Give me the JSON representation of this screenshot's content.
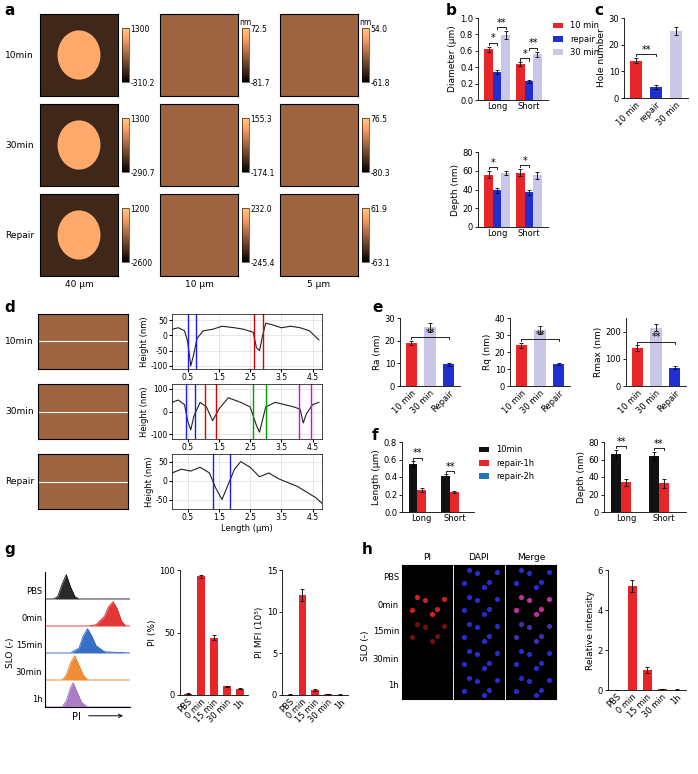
{
  "chart_data": [
    {
      "panel": "a",
      "type": "image_grid",
      "rows": [
        "10min",
        "30min",
        "Repair"
      ],
      "scales": [
        "40 µm",
        "10 µm",
        "5 µm"
      ],
      "colorbars": [
        [
          {
            "range": [
              -310.2,
              1300
            ],
            "ticks": [
              -310.2,
              1300
            ]
          },
          {
            "range": [
              -81.7,
              72.5
            ],
            "ticks": [
              -81.7,
              72.5
            ],
            "label": "nm"
          },
          {
            "range": [
              -61.8,
              54.0
            ],
            "ticks": [
              -61.8,
              54.0
            ],
            "label": "nm"
          }
        ],
        [
          {
            "range": [
              -290.7,
              1300
            ],
            "ticks": [
              -290.7,
              1300
            ]
          },
          {
            "range": [
              -174.1,
              155.3
            ],
            "ticks": [
              -174.1,
              155.3
            ]
          },
          {
            "range": [
              -80.3,
              76.5
            ],
            "ticks": [
              -80.3,
              76.5
            ]
          }
        ],
        [
          {
            "range": [
              -2600,
              1200
            ],
            "ticks": [
              -2600,
              1200
            ]
          },
          {
            "range": [
              -245.4,
              232.0
            ],
            "ticks": [
              -245.4,
              232.0
            ]
          },
          {
            "range": [
              -63.1,
              61.9
            ],
            "ticks": [
              -63.1,
              61.9
            ]
          }
        ]
      ]
    },
    {
      "panel": "b",
      "type": "bar",
      "ylabel": "Diameter (µm)",
      "categories": [
        "Long",
        "Short"
      ],
      "series": [
        {
          "name": "10 min",
          "color": "#e8262a",
          "values": [
            0.62,
            0.44
          ],
          "errors": [
            0.03,
            0.02
          ]
        },
        {
          "name": "repair",
          "color": "#1f2fd0",
          "values": [
            0.34,
            0.23
          ],
          "errors": [
            0.02,
            0.02
          ]
        },
        {
          "name": "30 min",
          "color": "#c8c8e6",
          "values": [
            0.79,
            0.56
          ],
          "errors": [
            0.05,
            0.03
          ]
        }
      ],
      "ylim": [
        0,
        1.0
      ],
      "yticks": [
        {
          "value": 0.0,
          "label": "0.0"
        },
        {
          "value": 0.2,
          "label": "0.2"
        },
        {
          "value": 0.4,
          "label": "0.4"
        },
        {
          "value": 0.6,
          "label": "0.6"
        },
        {
          "value": 0.8,
          "label": "0.8"
        },
        {
          "value": 1.0,
          "label": "1.0"
        }
      ],
      "legend": "right",
      "significance": [
        {
          "group": 0,
          "from": 0,
          "to": 1,
          "label": "*"
        },
        {
          "group": 0,
          "from": 1,
          "to": 2,
          "label": "**"
        },
        {
          "group": 1,
          "from": 0,
          "to": 1,
          "label": "*"
        },
        {
          "group": 1,
          "from": 1,
          "to": 2,
          "label": "**"
        }
      ]
    },
    {
      "panel": "c",
      "type": "bar",
      "ylabel": "Hole number",
      "categories": [
        "10 min",
        "repair",
        "30 min"
      ],
      "values": [
        14,
        4,
        25
      ],
      "errors": [
        1,
        0.8,
        1.5
      ],
      "colors": [
        "#e8262a",
        "#1f2fd0",
        "#c8c8e6"
      ],
      "ylim": [
        0,
        30
      ],
      "yticks": [
        0,
        10,
        20,
        30
      ],
      "significance": [
        {
          "from": 0,
          "to": 1,
          "label": "**"
        }
      ]
    },
    {
      "type": "bar",
      "ylabel": "Depth (nm)",
      "categories": [
        "Long",
        "Short"
      ],
      "series": [
        {
          "name": "10 min",
          "color": "#e8262a",
          "values": [
            56,
            58
          ],
          "errors": [
            4,
            4
          ]
        },
        {
          "name": "repair",
          "color": "#1f2fd0",
          "values": [
            39,
            37
          ],
          "errors": [
            3,
            3
          ]
        },
        {
          "name": "30 min",
          "color": "#c8c8e6",
          "values": [
            58,
            55
          ],
          "errors": [
            2,
            4
          ]
        }
      ],
      "ylim": [
        0,
        80
      ],
      "yticks": [
        0,
        20,
        40,
        60,
        80
      ],
      "significance": [
        {
          "group": 0,
          "from": 0,
          "to": 1,
          "label": "*"
        },
        {
          "group": 1,
          "from": 0,
          "to": 1,
          "label": "*"
        }
      ]
    },
    {
      "panel": "d",
      "type": "profile",
      "xlabel": "Length (µm)",
      "ylabel": "Height (nm)",
      "grid": true,
      "xlim": [
        0,
        4.8
      ],
      "xticks": [
        0.5,
        1.5,
        2.5,
        3.5,
        4.5
      ],
      "rows": [
        {
          "label": "10min",
          "ylim": [
            -110,
            70
          ],
          "yticks": [
            -100,
            -50,
            0,
            50
          ],
          "x": [
            0,
            0.2,
            0.4,
            0.5,
            0.6,
            0.7,
            0.8,
            1.0,
            1.3,
            1.6,
            2.0,
            2.3,
            2.6,
            2.7,
            2.8,
            2.9,
            3.0,
            3.2,
            3.5,
            3.8,
            4.1,
            4.4,
            4.7
          ],
          "y": [
            20,
            25,
            15,
            -20,
            -100,
            -60,
            -10,
            15,
            20,
            30,
            25,
            20,
            10,
            -40,
            -50,
            0,
            40,
            35,
            25,
            30,
            25,
            15,
            -15
          ],
          "markers": [
            {
              "x": 0.5,
              "color": "#1a1aff"
            },
            {
              "x": 0.78,
              "color": "#1a1aff"
            },
            {
              "x": 2.62,
              "color": "#e00000"
            },
            {
              "x": 2.92,
              "color": "#e00000"
            }
          ]
        },
        {
          "label": "30min",
          "ylim": [
            -120,
            120
          ],
          "yticks": [
            -100,
            0,
            100
          ],
          "x": [
            0,
            0.2,
            0.4,
            0.5,
            0.6,
            0.7,
            0.9,
            1.1,
            1.3,
            1.5,
            1.8,
            2.2,
            2.5,
            2.7,
            2.8,
            3.0,
            3.3,
            3.6,
            3.9,
            4.1,
            4.2,
            4.3,
            4.5,
            4.7
          ],
          "y": [
            40,
            50,
            30,
            -40,
            -80,
            -20,
            40,
            20,
            -40,
            10,
            60,
            40,
            20,
            -60,
            -90,
            20,
            40,
            30,
            20,
            10,
            -50,
            -10,
            30,
            40
          ],
          "markers": [
            {
              "x": 0.45,
              "color": "#1a1aff"
            },
            {
              "x": 0.72,
              "color": "#1a1aff"
            },
            {
              "x": 1.05,
              "color": "#e00000"
            },
            {
              "x": 1.4,
              "color": "#e00000"
            },
            {
              "x": 2.6,
              "color": "#00a000"
            },
            {
              "x": 3.0,
              "color": "#00a000"
            },
            {
              "x": 4.05,
              "color": "#e000e0"
            },
            {
              "x": 4.45,
              "color": "#e000e0"
            }
          ]
        },
        {
          "label": "Repair",
          "ylim": [
            -75,
            70
          ],
          "yticks": [
            -50,
            0,
            50
          ],
          "x": [
            0,
            0.3,
            0.6,
            0.9,
            1.2,
            1.4,
            1.6,
            1.8,
            2.0,
            2.2,
            2.5,
            2.8,
            3.1,
            3.4,
            3.7,
            4.0,
            4.3,
            4.6,
            4.8
          ],
          "y": [
            20,
            30,
            25,
            35,
            20,
            -20,
            -50,
            -10,
            30,
            50,
            35,
            10,
            20,
            5,
            -5,
            -15,
            -30,
            -45,
            -60
          ],
          "markers": [
            {
              "x": 1.3,
              "color": "#1a1aff"
            },
            {
              "x": 1.85,
              "color": "#1a1aff"
            }
          ]
        }
      ]
    },
    {
      "panel": "e",
      "type": "bar",
      "ylabel": "Ra (nm)",
      "categories": [
        "10 min",
        "30 min",
        "Repair"
      ],
      "values": [
        19,
        26,
        9.5
      ],
      "errors": [
        1,
        2,
        0.5
      ],
      "colors": [
        "#e8262a",
        "#c8c8e6",
        "#1f2fd0"
      ],
      "ylim": [
        0,
        30
      ],
      "yticks": [
        0,
        10,
        20,
        30
      ],
      "significance": [
        {
          "from": 0,
          "to": 2,
          "label": "**"
        }
      ]
    },
    {
      "type": "bar",
      "ylabel": "Rq (nm)",
      "categories": [
        "10 min",
        "30 min",
        "Repair"
      ],
      "values": [
        24,
        33,
        13
      ],
      "errors": [
        1.5,
        2.5,
        0.5
      ],
      "colors": [
        "#e8262a",
        "#c8c8e6",
        "#1f2fd0"
      ],
      "ylim": [
        0,
        40
      ],
      "yticks": [
        0,
        10,
        20,
        30,
        40
      ],
      "significance": [
        {
          "from": 0,
          "to": 2,
          "label": "**"
        }
      ]
    },
    {
      "type": "bar",
      "ylabel": "Rmax (nm)",
      "categories": [
        "10 min",
        "30 min",
        "Repair"
      ],
      "values": [
        140,
        215,
        68
      ],
      "errors": [
        10,
        12,
        5
      ],
      "colors": [
        "#e8262a",
        "#c8c8e6",
        "#1f2fd0"
      ],
      "ylim": [
        0,
        250
      ],
      "yticks": [
        0,
        100,
        200
      ],
      "significance": [
        {
          "from": 0,
          "to": 2,
          "label": "**"
        }
      ]
    },
    {
      "panel": "f",
      "type": "bar",
      "ylabel": "Length (µm)",
      "categories": [
        "Long",
        "Short"
      ],
      "series": [
        {
          "name": "10min",
          "color": "#111111",
          "values": [
            0.55,
            0.41
          ],
          "errors": [
            0.03,
            0.02
          ]
        },
        {
          "name": "repair-1h",
          "color": "#e8262a",
          "values": [
            0.25,
            0.23
          ],
          "errors": [
            0.02,
            0.01
          ]
        },
        {
          "name": "repair-2h",
          "color": "#1f2fd0",
          "values": [
            null,
            null
          ]
        }
      ],
      "ylim": [
        0,
        0.8
      ],
      "yticks": [
        {
          "value": 0.0,
          "label": "0.0"
        },
        {
          "value": 0.2,
          "label": "0.2"
        },
        {
          "value": 0.4,
          "label": "0.4"
        },
        {
          "value": 0.6,
          "label": "0.6"
        },
        {
          "value": 0.8,
          "label": "0.8"
        }
      ],
      "legend": "right",
      "significance": [
        {
          "group": 0,
          "from": 0,
          "to": 1,
          "label": "**"
        },
        {
          "group": 1,
          "from": 0,
          "to": 1,
          "label": "**"
        }
      ]
    },
    {
      "type": "bar",
      "ylabel": "Depth (nm)",
      "categories": [
        "Long",
        "Short"
      ],
      "series": [
        {
          "name": "10min",
          "color": "#111111",
          "values": [
            66,
            64
          ],
          "errors": [
            5,
            5
          ]
        },
        {
          "name": "repair-1h",
          "color": "#e8262a",
          "values": [
            34,
            33
          ],
          "errors": [
            4,
            5
          ]
        },
        {
          "name": "repair-2h",
          "color": "#1f2fd0",
          "values": [
            null,
            null
          ]
        }
      ],
      "ylim": [
        0,
        80
      ],
      "yticks": [
        0,
        20,
        40,
        60,
        80
      ],
      "significance": [
        {
          "group": 0,
          "from": 0,
          "to": 1,
          "label": "**"
        },
        {
          "group": 1,
          "from": 0,
          "to": 1,
          "label": "**"
        }
      ]
    },
    {
      "panel": "g",
      "type": "flow_histogram",
      "xlabel": "PI",
      "group_label": "SLO (-)",
      "xlim": [
        0,
        10
      ],
      "tick_labels": false,
      "curves": [
        {
          "name": "PBS",
          "color": "#111111",
          "x": [
            0,
            1,
            1.5,
            2,
            2.5,
            3,
            3.5,
            4,
            5,
            10
          ],
          "y": [
            0,
            0,
            0.1,
            0.6,
            1,
            0.5,
            0.1,
            0,
            0,
            0
          ]
        },
        {
          "name": "0min",
          "color": "#e02020",
          "x": [
            0,
            5,
            6,
            7,
            7.5,
            8,
            8.5,
            9,
            9.5,
            10
          ],
          "y": [
            0,
            0,
            0.05,
            0.4,
            0.8,
            1,
            0.7,
            0.2,
            0,
            0
          ]
        },
        {
          "name": "15min",
          "color": "#2060c0",
          "x": [
            0,
            3,
            4,
            4.5,
            5,
            5.5,
            6,
            7,
            10
          ],
          "y": [
            0,
            0,
            0.2,
            0.7,
            1,
            0.7,
            0.3,
            0.05,
            0
          ]
        },
        {
          "name": "30min",
          "color": "#f08020",
          "x": [
            0,
            2,
            2.5,
            3,
            3.5,
            4,
            4.5,
            5,
            10
          ],
          "y": [
            0,
            0,
            0.2,
            0.7,
            1,
            0.6,
            0.2,
            0,
            0
          ]
        },
        {
          "name": "1h",
          "color": "#a070c0",
          "x": [
            0,
            2,
            2.5,
            3,
            3.3,
            3.8,
            4.3,
            5,
            10
          ],
          "y": [
            0,
            0,
            0.25,
            0.8,
            1,
            0.6,
            0.2,
            0,
            0
          ]
        }
      ]
    },
    {
      "type": "bar",
      "ylabel": "PI (%)",
      "categories": [
        "PBS",
        "0 min",
        "15 min",
        "30 min",
        "1h"
      ],
      "values": [
        1,
        95,
        46,
        7,
        5
      ],
      "errors": [
        0.3,
        1,
        2,
        0.5,
        0.5
      ],
      "color": "#e8262a",
      "ylim": [
        0,
        100
      ],
      "yticks": [
        0,
        50,
        100
      ]
    },
    {
      "type": "bar",
      "ylabel": "PI MFI (10⁵)",
      "categories": [
        "PBS",
        "0 min",
        "15 min",
        "30 min",
        "1h"
      ],
      "values": [
        0.05,
        12,
        0.6,
        0.1,
        0.05
      ],
      "errors": [
        0.02,
        0.7,
        0.1,
        0.02,
        0.02
      ],
      "color": "#e8262a",
      "ylim": [
        0,
        15
      ],
      "yticks": [
        0,
        5,
        10,
        15
      ]
    },
    {
      "panel": "h",
      "type": "fluorescence_grid",
      "group_label": "SLO (-)",
      "rows": [
        "PBS",
        "0min",
        "15min",
        "30min",
        "1h"
      ],
      "columns": [
        "PI",
        "DAPI",
        "Merge"
      ],
      "colors": [
        [
          "#000000",
          "#2a2ad0",
          "#2a2ad0"
        ],
        [
          "#d02020",
          "#2a2ad0",
          "#c030a0"
        ],
        [
          "#701010",
          "#2a2ad0",
          "#4a2ab0"
        ],
        [
          "#000000",
          "#2a2ad0",
          "#2a2ad0"
        ],
        [
          "#000000",
          "#2a2ad0",
          "#2a2ad0"
        ]
      ]
    },
    {
      "type": "bar",
      "ylabel": "Relative intensity",
      "categories": [
        "PBS",
        "0 min",
        "15 min",
        "30 min",
        "1h"
      ],
      "values": [
        0,
        5.2,
        1.0,
        0.05,
        0.02
      ],
      "errors": [
        0,
        0.3,
        0.15,
        0.01,
        0.01
      ],
      "color": "#e8262a",
      "ylim": [
        0,
        6
      ],
      "yticks": [
        0,
        2,
        4,
        6
      ]
    }
  ]
}
